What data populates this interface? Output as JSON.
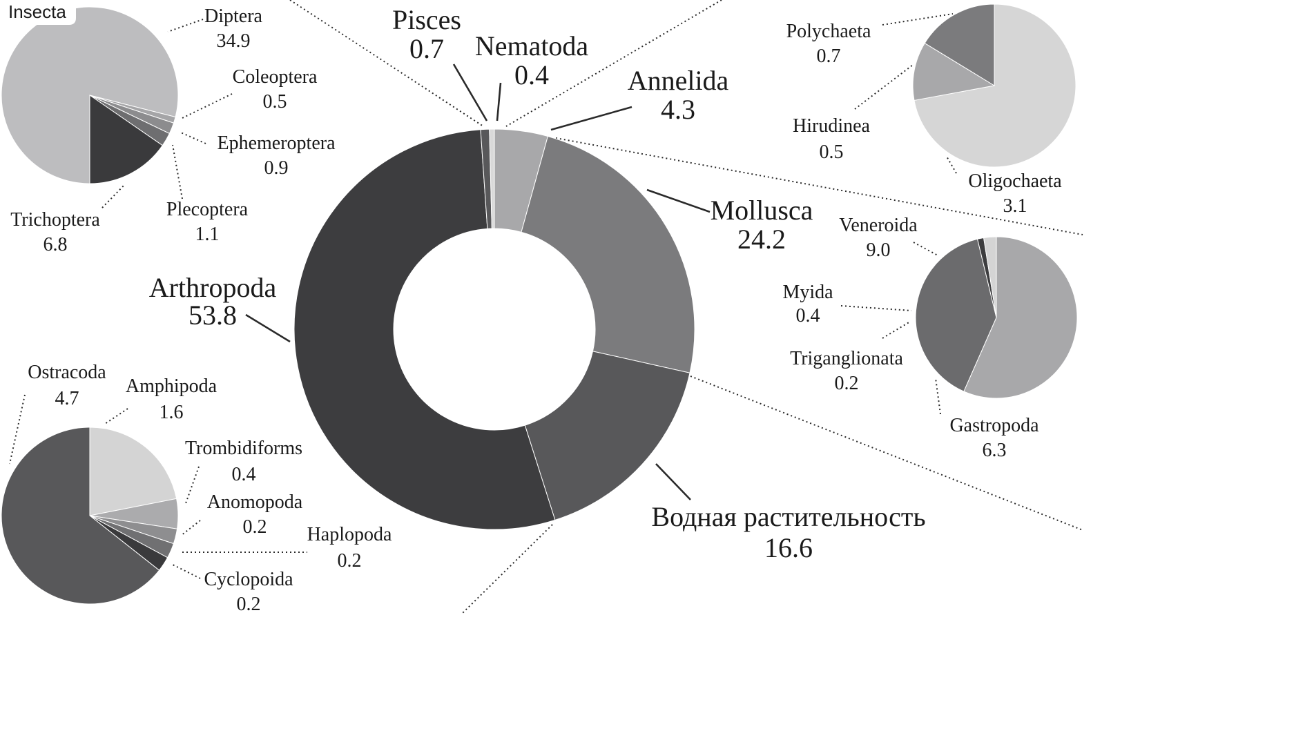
{
  "chart_data": [
    {
      "type": "pie",
      "title": "",
      "role": "main-donut",
      "slices": [
        {
          "label": "Arthropoda",
          "value": 53.8,
          "display": "53.8",
          "color": "#3d3d3f"
        },
        {
          "label": "Pisces",
          "value": 0.7,
          "display": "0.7",
          "color": "#58585a"
        },
        {
          "label": "Nematoda",
          "value": 0.4,
          "display": "0.4",
          "color": "#d9d9d9"
        },
        {
          "label": "Annelida",
          "value": 4.3,
          "display": "4.3",
          "color": "#a8a8aa"
        },
        {
          "label": "Mollusca",
          "value": 24.2,
          "display": "24.2",
          "color": "#7b7b7d"
        },
        {
          "label": "Водная растительность",
          "value": 16.6,
          "display": "16.6",
          "color": "#58585a"
        }
      ]
    },
    {
      "type": "pie",
      "title": "Insecta",
      "role": "Insecta",
      "slices": [
        {
          "label": "Diptera",
          "value": 34.9,
          "display": "34.9",
          "color": "#bdbdbf"
        },
        {
          "label": "Coleoptera",
          "value": 0.5,
          "display": "0.5",
          "color": "#a5a5a7"
        },
        {
          "label": "Ephemeroptera",
          "value": 0.9,
          "display": "0.9",
          "color": "#8c8c8e"
        },
        {
          "label": "Plecoptera",
          "value": 1.1,
          "display": "1.1",
          "color": "#6e6e70"
        },
        {
          "label": "Trichoptera",
          "value": 6.8,
          "display": "6.8",
          "color": "#3a3a3c"
        }
      ]
    },
    {
      "type": "pie",
      "title": "",
      "role": "Crustacea",
      "slices": [
        {
          "label": "Amphipoda",
          "value": 1.6,
          "display": "1.6",
          "color": "#d4d4d4"
        },
        {
          "label": "Trombidiforms",
          "value": 0.4,
          "display": "0.4",
          "color": "#ababad"
        },
        {
          "label": "Anomopoda",
          "value": 0.2,
          "display": "0.2",
          "color": "#8e8e90"
        },
        {
          "label": "Haplopoda",
          "value": 0.2,
          "display": "0.2",
          "color": "#707072"
        },
        {
          "label": "Cyclopoida",
          "value": 0.2,
          "display": "0.2",
          "color": "#3a3a3c"
        },
        {
          "label": "Ostracoda",
          "value": 4.7,
          "display": "4.7",
          "color": "#58585a"
        }
      ]
    },
    {
      "type": "pie",
      "title": "",
      "role": "Annelida-detail",
      "slices": [
        {
          "label": "Oligochaeta",
          "value": 3.1,
          "display": "3.1",
          "color": "#d6d6d6"
        },
        {
          "label": "Hirudinea",
          "value": 0.5,
          "display": "0.5",
          "color": "#a8a8aa"
        },
        {
          "label": "Polychaeta",
          "value": 0.7,
          "display": "0.7",
          "color": "#7b7b7d"
        }
      ]
    },
    {
      "type": "pie",
      "title": "",
      "role": "Mollusca-detail",
      "slices": [
        {
          "label": "Veneroida",
          "value": 9.0,
          "display": "9.0",
          "color": "#a8a8aa"
        },
        {
          "label": "Gastropoda",
          "value": 6.3,
          "display": "6.3",
          "color": "#6b6b6d"
        },
        {
          "label": "Triganglionata",
          "value": 0.2,
          "display": "0.2",
          "color": "#3d3d3f"
        },
        {
          "label": "Myida",
          "value": 0.4,
          "display": "0.4",
          "color": "#d4d4d4"
        }
      ]
    }
  ]
}
